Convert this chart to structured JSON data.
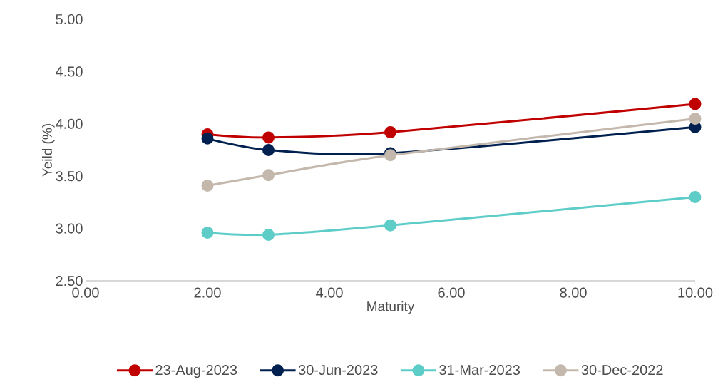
{
  "chart_data": {
    "type": "line",
    "xlabel": "Maturity",
    "ylabel": "Yeild (%)",
    "x": [
      2,
      3,
      5,
      10
    ],
    "series": [
      {
        "name": "23-Aug-2023",
        "color": "#c00000",
        "values": [
          3.9,
          3.87,
          3.92,
          4.19
        ]
      },
      {
        "name": "30-Jun-2023",
        "color": "#002050",
        "values": [
          3.86,
          3.75,
          3.72,
          3.97
        ]
      },
      {
        "name": "31-Mar-2023",
        "color": "#5ecdc8",
        "values": [
          2.96,
          2.94,
          3.03,
          3.3
        ]
      },
      {
        "name": "30-Dec-2022",
        "color": "#c4b8ad",
        "values": [
          3.41,
          3.51,
          3.7,
          4.05
        ]
      }
    ],
    "xlim": [
      0,
      10
    ],
    "ylim": [
      2.5,
      5.0
    ],
    "xticks": [
      {
        "value": 0,
        "label": "0.00"
      },
      {
        "value": 2,
        "label": "2.00"
      },
      {
        "value": 4,
        "label": "4.00"
      },
      {
        "value": 6,
        "label": "6.00"
      },
      {
        "value": 8,
        "label": "8.00"
      },
      {
        "value": 10,
        "label": "10.00"
      }
    ],
    "yticks": [
      {
        "value": 2.5,
        "label": "2.50"
      },
      {
        "value": 3,
        "label": "3.00"
      },
      {
        "value": 3.5,
        "label": "3.50"
      },
      {
        "value": 4,
        "label": "4.00"
      },
      {
        "value": 4.5,
        "label": "4.50"
      },
      {
        "value": 5,
        "label": "5.00"
      }
    ],
    "legend": "bottom",
    "marker": "circle",
    "line_style": "solid",
    "grid": false
  }
}
